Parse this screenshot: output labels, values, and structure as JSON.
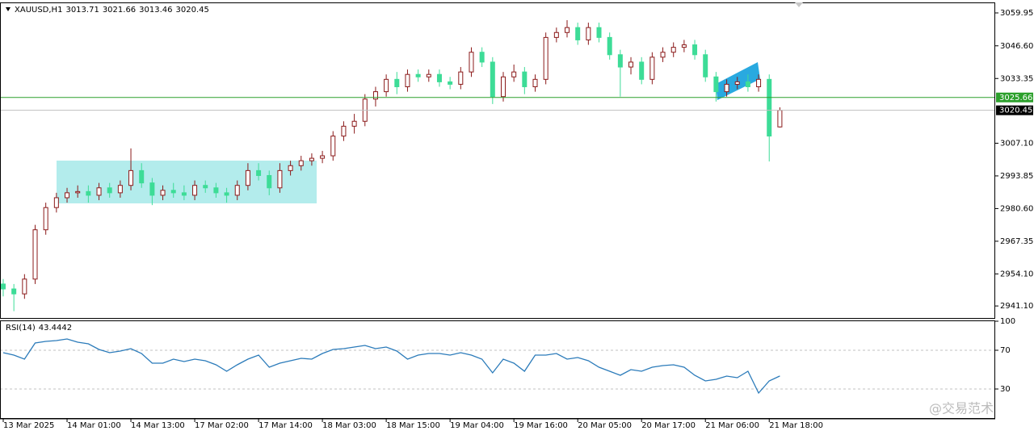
{
  "chart_data": [
    {
      "type": "candlestick",
      "title": "XAUUSD,H1",
      "categories": [
        "13 Mar 2025",
        null,
        null,
        null,
        null,
        null,
        "14 Mar 01:00",
        null,
        null,
        null,
        null,
        null,
        "14 Mar 13:00",
        null,
        null,
        null,
        null,
        null,
        "17 Mar 02:00",
        null,
        null,
        null,
        null,
        null,
        "17 Mar 14:00",
        null,
        null,
        null,
        null,
        null,
        "18 Mar 03:00",
        null,
        null,
        null,
        null,
        null,
        "18 Mar 15:00",
        null,
        null,
        null,
        null,
        null,
        "19 Mar 04:00",
        null,
        null,
        null,
        null,
        null,
        "19 Mar 16:00",
        null,
        null,
        null,
        null,
        null,
        "20 Mar 05:00",
        null,
        null,
        null,
        null,
        null,
        "20 Mar 17:00",
        null,
        null,
        null,
        null,
        null,
        "21 Mar 06:00",
        null,
        null,
        null,
        null,
        null,
        "21 Mar 18:00",
        null
      ],
      "open": [
        2950,
        2948,
        2946,
        2952,
        2972,
        2981,
        2985,
        2987,
        2987.5,
        2986,
        2989,
        2987,
        2990,
        2996,
        2991,
        2986,
        2988,
        2987,
        2986,
        2990,
        2989,
        2987,
        2986,
        2990,
        2996,
        2994,
        2989,
        2996,
        2998,
        3000,
        3001,
        3002,
        3010,
        3014,
        3016,
        3025,
        3028,
        3033,
        3030,
        3035,
        3034,
        3035,
        3032,
        3031,
        3036,
        3044,
        3040,
        3026,
        3034,
        3036,
        3030,
        3033,
        3050,
        3052,
        3054,
        3049,
        3054,
        3050,
        3043,
        3038,
        3040,
        3033,
        3042,
        3044,
        3046,
        3047,
        3043,
        3034,
        3028,
        3031,
        3032,
        3030,
        3033,
        3013.71
      ],
      "high": [
        2952,
        2950,
        2954,
        2974,
        2983,
        2987,
        2989,
        2990,
        2990,
        2991,
        2991,
        2992,
        3005,
        2999,
        2993,
        2990,
        2991,
        2990,
        2992,
        2992,
        2991,
        2989,
        2992,
        2999,
        2999,
        2996,
        2999,
        3000,
        3002,
        3003,
        3004,
        3012,
        3016,
        3019,
        3027,
        3030,
        3035,
        3036,
        3037,
        3037,
        3037,
        3037,
        3034,
        3038,
        3046,
        3046,
        3042,
        3036,
        3039,
        3038,
        3035,
        3052,
        3054,
        3057,
        3056,
        3056,
        3056,
        3052,
        3045,
        3042,
        3042,
        3044,
        3046,
        3048,
        3049,
        3049,
        3045,
        3036,
        3033,
        3034,
        3035,
        3035,
        3035,
        3021.66
      ],
      "low": [
        2945,
        2939,
        2944,
        2950,
        2970,
        2979,
        2983,
        2985,
        2983,
        2984,
        2985,
        2985,
        2988,
        2989,
        2982,
        2984,
        2985,
        2984,
        2984,
        2987,
        2985,
        2983,
        2984,
        2988,
        2992,
        2986,
        2987,
        2994,
        2996,
        2998,
        2999,
        3000,
        3008,
        3011,
        3014,
        3022,
        3026,
        3027,
        3028,
        3032,
        3032,
        3030,
        3029,
        3029,
        3034,
        3038,
        3023,
        3024,
        3032,
        3027,
        3028,
        3031,
        3048,
        3050,
        3047,
        3047,
        3048,
        3041,
        3026,
        3035,
        3031,
        3031,
        3040,
        3042,
        3044,
        3041,
        3032,
        3024,
        3026,
        3029,
        3028,
        3028,
        2999.7,
        3013.46
      ],
      "close": [
        2948,
        2946,
        2952,
        2972,
        2981,
        2985,
        2987,
        2987.5,
        2986,
        2989,
        2987,
        2990,
        2996,
        2991,
        2986,
        2988,
        2987,
        2986,
        2990,
        2989,
        2987,
        2986,
        2990,
        2996,
        2994,
        2989,
        2996,
        2998,
        3000,
        3001,
        3002,
        3010,
        3014,
        3016,
        3025,
        3028,
        3033,
        3030,
        3035,
        3034,
        3035,
        3032,
        3031,
        3036,
        3044,
        3040,
        3026,
        3034,
        3036,
        3030,
        3033,
        3050,
        3052,
        3054,
        3049,
        3054,
        3050,
        3043,
        3038,
        3040,
        3033,
        3042,
        3044,
        3046,
        3047,
        3043,
        3034,
        3028,
        3031,
        3032,
        3030,
        3033,
        3010,
        3020.45
      ],
      "up_color": "#8b1a1a",
      "down_color": "#3ddc97",
      "ylim": [
        2935.9,
        3064.2
      ],
      "yticks": [
        {
          "value": 2941.1,
          "label": "2941.10"
        },
        {
          "value": 2954.1,
          "label": "2954.10"
        },
        2967.35,
        {
          "value": 2980.6,
          "label": "2980.60"
        },
        2993.85,
        {
          "value": 3007.1,
          "label": "3007.10"
        },
        3033.35,
        {
          "value": 3046.6,
          "label": "3046.60"
        },
        3059.95
      ],
      "hline": {
        "value": 3025.66,
        "color": "#2ca02c"
      }
    },
    {
      "type": "line",
      "title": "RSI(14)",
      "values": [
        67.5,
        65,
        60.8,
        77.5,
        79.2,
        80,
        81.7,
        78.3,
        76.7,
        70.8,
        67.5,
        69.2,
        71.7,
        66.7,
        56.7,
        56.7,
        60.8,
        58.3,
        60.8,
        59.2,
        55,
        48.3,
        55,
        60.8,
        65,
        52.5,
        56.7,
        59.2,
        61.7,
        60.8,
        66.7,
        70.8,
        71.7,
        73.3,
        75,
        71.7,
        73.3,
        69.2,
        60.8,
        65,
        66.7,
        66.7,
        65,
        67.5,
        65,
        60.8,
        46.7,
        60.8,
        56.7,
        48.3,
        65,
        65,
        66.7,
        60.8,
        62.5,
        59.2,
        52.5,
        48.3,
        44.2,
        50,
        48.3,
        52.5,
        54.2,
        55,
        52.5,
        44.2,
        38.3,
        40,
        43.3,
        41.7,
        48.3,
        25.8,
        38.3,
        43.4442
      ],
      "color": "#2b7bba",
      "ylim": [
        0,
        100
      ],
      "yticks": [
        30,
        70,
        100
      ],
      "grid": true
    }
  ],
  "watermark": "@交易范术"
}
